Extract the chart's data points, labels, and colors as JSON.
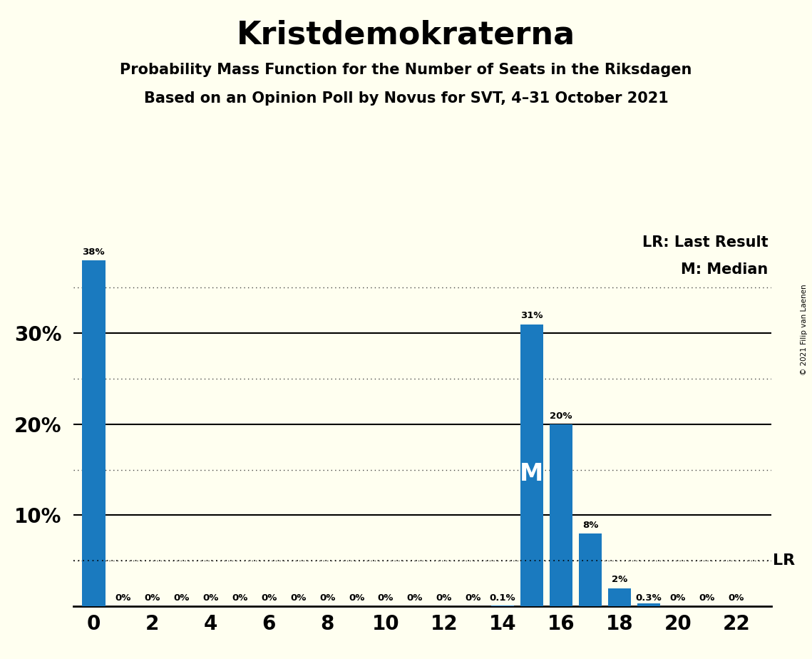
{
  "title": "Kristdemokraterna",
  "subtitle1": "Probability Mass Function for the Number of Seats in the Riksdagen",
  "subtitle2": "Based on an Opinion Poll by Novus for SVT, 4–31 October 2021",
  "copyright": "© 2021 Filip van Laenen",
  "lr_label": "LR: Last Result",
  "median_label": "M: Median",
  "lr_value": 0.05,
  "median_seat": 15,
  "x_min": -0.7,
  "x_max": 23.2,
  "y_min": 0,
  "y_max": 0.42,
  "seats": [
    0,
    1,
    2,
    3,
    4,
    5,
    6,
    7,
    8,
    9,
    10,
    11,
    12,
    13,
    14,
    15,
    16,
    17,
    18,
    19,
    20,
    21,
    22
  ],
  "probs": [
    0.38,
    0.0,
    0.0,
    0.0,
    0.0,
    0.0,
    0.0,
    0.0,
    0.0,
    0.0,
    0.0,
    0.0,
    0.0,
    0.0,
    0.001,
    0.31,
    0.2,
    0.08,
    0.02,
    0.003,
    0.0,
    0.0,
    0.0
  ],
  "bar_labels": [
    "38%",
    "0%",
    "0%",
    "0%",
    "0%",
    "0%",
    "0%",
    "0%",
    "0%",
    "0%",
    "0%",
    "0%",
    "0%",
    "0%",
    "0.1%",
    "31%",
    "20%",
    "8%",
    "2%",
    "0.3%",
    "0%",
    "0%",
    "0%"
  ],
  "show_label": [
    true,
    true,
    true,
    true,
    true,
    true,
    true,
    true,
    true,
    true,
    true,
    true,
    true,
    true,
    true,
    true,
    true,
    true,
    true,
    true,
    true,
    true,
    true
  ],
  "bar_color": "#1a7abf",
  "background_color": "#fffff0",
  "grid_solid_color": "#000000",
  "grid_dot_color": "#444444",
  "x_ticks": [
    0,
    2,
    4,
    6,
    8,
    10,
    12,
    14,
    16,
    18,
    20,
    22
  ],
  "solid_levels": [
    0.1,
    0.2,
    0.3
  ],
  "dot_levels": [
    0.05,
    0.15,
    0.25,
    0.35
  ]
}
